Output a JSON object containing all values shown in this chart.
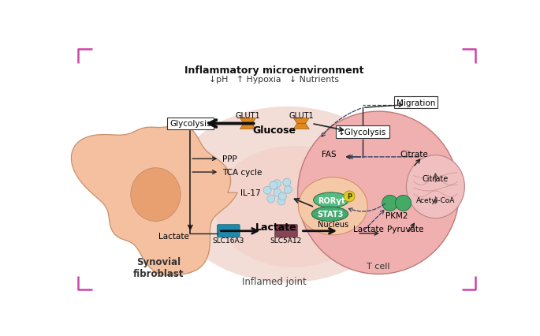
{
  "background": "#ffffff",
  "corner_color": "#cc44aa",
  "inflammatory_title": "Inflammatory microenvironment",
  "inflammatory_subtitle": "↓pH   ↑ Hypoxia   ↓ Nutrients",
  "synovial_label": "Synovial\nfibroblast",
  "inflamed_label": "Inflamed joint",
  "tcell_label": "T cell",
  "nucleus_label": "Nucleus",
  "glycolysis_label": "Glycolysis",
  "ppp_label": "PPP",
  "tca_label": "TCA cycle",
  "lactate_label_left": "Lactate",
  "lactate_bold_label": "Lactate",
  "slc16a3_label": "SLC16A3",
  "slc5a12_label": "SLC5A12",
  "glut1_left_label": "GLUT1",
  "glut1_right_label": "GLUT1",
  "glucose_label": "Glucose",
  "glycolysis_down_label": "↓Glycolysis",
  "migration_label": "Migration",
  "fas_label": "FAS",
  "citrate_right_label": "Citrate",
  "citrate_mito_label": "Citrate",
  "acetylcoa_label": "Acetyl-CoA",
  "pyruvate_label": "Pyruvate",
  "lactate_tcell_label": "Lactate",
  "pkm2_label": "PKM2",
  "rorgt_label": "RORγt",
  "stat3_label": "STAT3",
  "il17_label": "IL-17",
  "phospho_label": "P",
  "synovial_cell_color": "#f5c0a0",
  "synovial_nucleus_color": "#e8a070",
  "inflamed_joint_color": "#dda898",
  "tcell_color": "#f0b0b0",
  "tcell_border_color": "#c07878",
  "mito_color": "#f0c0c0",
  "mito_border_color": "#c08888",
  "nucleus_color": "#f5c8a8",
  "nucleus_border_color": "#d49068",
  "green_color": "#44aa66",
  "green_dark": "#226644",
  "teal_color": "#2288aa",
  "dark_red_color": "#884455",
  "orange_color": "#e08820",
  "light_blue_color": "#b8dde8",
  "yellow_color": "#ddcc22",
  "arrow_color": "#222222",
  "dashed_color": "#334466",
  "text_color": "#222222"
}
